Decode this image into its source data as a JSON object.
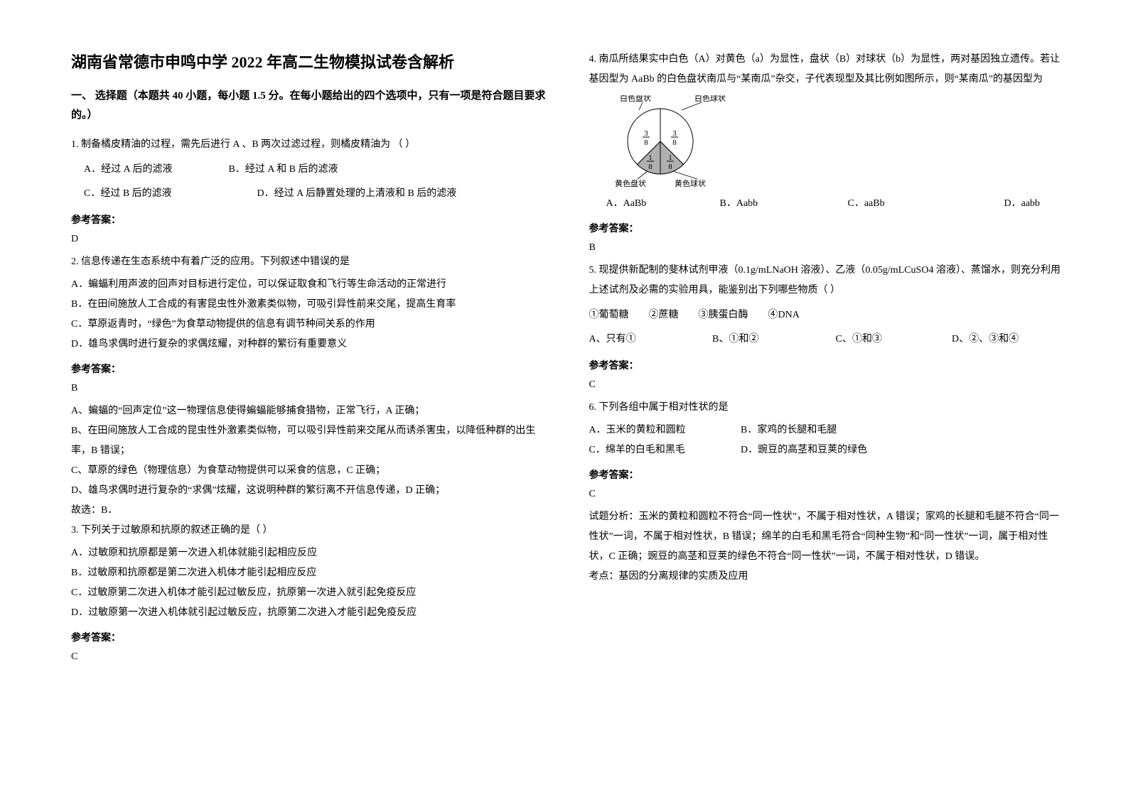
{
  "title": "湖南省常德市申鸣中学 2022 年高二生物模拟试卷含解析",
  "section1": "一、 选择题（本题共 40 小题，每小题 1.5 分。在每小题给出的四个选项中，只有一项是符合题目要求的。）",
  "q1": {
    "stem": "1. 制备橘皮精油的过程，需先后进行 A 、B 两次过滤过程，则橘皮精油为 （   ）",
    "optA": "A．经过 A 后的滤液",
    "optB": "B．经过 A 和 B 后的滤液",
    "optC": "C．经过 B 后的滤液",
    "optD": "D．经过 A 后静置处理的上清液和 B 后的滤液",
    "answer_label": "参考答案：",
    "answer": "D"
  },
  "q2": {
    "stem": "2. 信息传递在生态系统中有着广泛的应用。下列叙述中错误的是",
    "optA": "A．蝙蝠利用声波的回声对目标进行定位，可以保证取食和飞行等生命活动的正常进行",
    "optB": "B．在田间施放人工合成的有害昆虫性外激素类似物，可吸引异性前来交尾，提高生育率",
    "optC": "C．草原返青时，“绿色”为食草动物提供的信息有调节种间关系的作用",
    "optD": "D．雄鸟求偶时进行复杂的求偶炫耀，对种群的繁衍有重要意义",
    "answer_label": "参考答案：",
    "answer": "B",
    "expA": "A、蝙蝠的“回声定位”这一物理信息使得蝙蝠能够捕食猎物，正常飞行，A 正确；",
    "expB": "B、在田间施放人工合成的昆虫性外激素类似物，可以吸引异性前来交尾从而诱杀害虫，以降低种群的出生率，B 错误；",
    "expC": "C、草原的绿色（物理信息）为食草动物提供可以采食的信息，C 正确；",
    "expD": "D、雄鸟求偶时进行复杂的“求偶”炫耀，这说明种群的繁衍离不开信息传递，D 正确；",
    "expEnd": "故选：B．"
  },
  "q3": {
    "stem": "3. 下列关于过敏原和抗原的叙述正确的是（     ）",
    "optA": "A．过敏原和抗原都是第一次进入机体就能引起相应反应",
    "optB": "B．过敏原和抗原都是第二次进入机体才能引起相应反应",
    "optC": "C．过敏原第二次进入机体才能引起过敏反应，抗原第一次进入就引起免疫反应",
    "optD": "D．过敏原第一次进入机体就引起过敏反应，抗原第二次进入才能引起免疫反应",
    "answer_label": "参考答案：",
    "answer": "C"
  },
  "q4": {
    "stem": "4. 南瓜所结果实中白色（A）对黄色（a）为显性，盘状（B）对球状（b）为显性，两对基因独立遗传。若让基因型为 AaBb 的白色盘状南瓜与“某南瓜”杂交，子代表现型及其比例如图所示，则“某南瓜”的基因型为",
    "chart": {
      "type": "pie",
      "labels": [
        "白色盘状",
        "白色球状",
        "黄色盘状",
        "黄色球状"
      ],
      "label_fractions": [
        "3/8",
        "3/8",
        "1/8",
        "1/8"
      ],
      "values": [
        0.375,
        0.375,
        0.125,
        0.125
      ],
      "colors": [
        "#ffffff",
        "#ffffff",
        "#b0b0b0",
        "#b0b0b0"
      ],
      "border_color": "#000000",
      "label_fontsize": 11,
      "fraction_fontsize": 11,
      "radius": 46
    },
    "optA": "A．AaBb",
    "optB": "B．Aabb",
    "optC": "C．aaBb",
    "optD": "D．aabb",
    "answer_label": "参考答案：",
    "answer": "B"
  },
  "q5": {
    "stem": "5. 现提供新配制的斐林试剂甲液（0.1g/mLNaOH 溶液）、乙液（0.05g/mLCuSO4 溶液）、蒸馏水，则充分利用上述试剂及必需的实验用具，能鉴别出下列哪些物质（  ）",
    "items": "①葡萄糖        ②蔗糖        ③胰蛋白酶        ④DNA",
    "optA": "A、只有①",
    "optB": "B、①和②",
    "optC": "C、①和③",
    "optD": "D、②、③和④",
    "answer_label": "参考答案：",
    "answer": "C"
  },
  "q6": {
    "stem": "6. 下列各组中属于相对性状的是",
    "optA": "A．玉米的黄粒和圆粒",
    "optB": "B．家鸡的长腿和毛腿",
    "optC": "C．绵羊的白毛和黑毛",
    "optD": "D．豌豆的高茎和豆荚的绿色",
    "answer_label": "参考答案：",
    "answer": "C",
    "explain": "试题分析：玉米的黄粒和圆粒不符合“同一性状”，不属于相对性状，A 错误；家鸡的长腿和毛腿不符合“同一性状”一词，不属于相对性状，B 错误；绵羊的白毛和黑毛符合“同种生物”和“同一性状”一词，属于相对性状，C 正确；豌豆的高茎和豆荚的绿色不符合“同一性状”一词，不属于相对性状，D 错误。",
    "point": "考点：基因的分离规律的实质及应用"
  }
}
